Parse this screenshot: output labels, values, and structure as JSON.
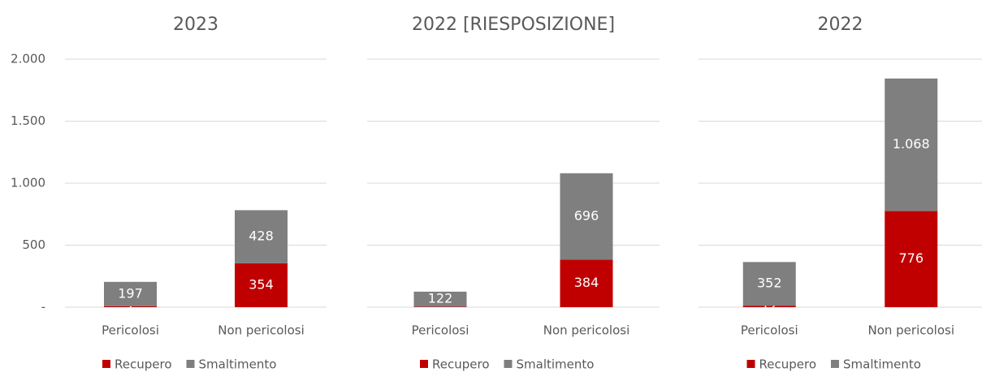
{
  "chart_data": [
    {
      "type": "stacked_bar",
      "title": "2023",
      "categories": [
        "Pericolosi",
        "Non pericolosi"
      ],
      "series": [
        {
          "name": "Recupero",
          "color": "#c00000",
          "values": [
            7,
            354
          ],
          "value_labels": [
            "7",
            "354"
          ]
        },
        {
          "name": "Smaltimento",
          "color": "#7f7f7f",
          "values": [
            197,
            428
          ],
          "value_labels": [
            "197",
            "428"
          ]
        }
      ],
      "ylim": [
        0,
        2000
      ],
      "yticks": [
        {
          "value": 0,
          "label": "-"
        },
        500,
        {
          "value": 1000,
          "label": "1.000"
        },
        {
          "value": 1500,
          "label": "1.500"
        },
        {
          "value": 2000,
          "label": "2.000"
        }
      ],
      "show_ytick_labels": true,
      "grid": true,
      "legend": "bottom"
    },
    {
      "type": "stacked_bar",
      "title": "2022 [RIESPOSIZIONE]",
      "categories": [
        "Pericolosi",
        "Non pericolosi"
      ],
      "series": [
        {
          "name": "Recupero",
          "color": "#c00000",
          "values": [
            3,
            384
          ],
          "value_labels": [
            null,
            "384"
          ]
        },
        {
          "name": "Smaltimento",
          "color": "#7f7f7f",
          "values": [
            122,
            696
          ],
          "value_labels": [
            "122",
            "696"
          ]
        }
      ],
      "ylim": [
        0,
        2000
      ],
      "yticks": [
        0,
        500,
        1000,
        1500,
        2000
      ],
      "show_ytick_labels": false,
      "grid": true,
      "legend": "bottom"
    },
    {
      "type": "stacked_bar",
      "title": "2022",
      "categories": [
        "Pericolosi",
        "Non pericolosi"
      ],
      "series": [
        {
          "name": "Recupero",
          "color": "#c00000",
          "values": [
            12,
            776
          ],
          "value_labels": [
            "12",
            "776"
          ]
        },
        {
          "name": "Smaltimento",
          "color": "#7f7f7f",
          "values": [
            352,
            1068
          ],
          "value_labels": [
            "352",
            "1.068"
          ]
        }
      ],
      "ylim": [
        0,
        2000
      ],
      "yticks": [
        0,
        500,
        1000,
        1500,
        2000
      ],
      "show_ytick_labels": false,
      "grid": true,
      "legend": "bottom"
    }
  ]
}
